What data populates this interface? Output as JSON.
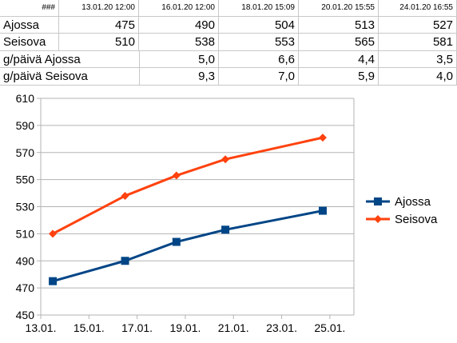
{
  "sheet": {
    "header": [
      "###",
      "13.01.20 12:00",
      "16.01.20 12:00",
      "18.01.20 15:09",
      "20.01.20 15:55",
      "24.01.20 16:55"
    ],
    "rows": [
      {
        "label": "Ajossa",
        "values": [
          "475",
          "490",
          "504",
          "513",
          "527"
        ]
      },
      {
        "label": "Seisova",
        "values": [
          "510",
          "538",
          "553",
          "565",
          "581"
        ]
      },
      {
        "label": "g/päivä Ajossa",
        "values": [
          "",
          "5,0",
          "6,6",
          "4,4",
          "3,5"
        ]
      },
      {
        "label": "g/päivä Seisova",
        "values": [
          "",
          "9,3",
          "7,0",
          "5,9",
          "4,0"
        ]
      }
    ]
  },
  "chart_data": {
    "type": "line",
    "title": "",
    "xlabel": "",
    "ylabel": "",
    "x": [
      "2020-01-13 12:00",
      "2020-01-16 12:00",
      "2020-01-18 15:09",
      "2020-01-20 15:55",
      "2020-01-24 16:55"
    ],
    "series": [
      {
        "name": "Ajossa",
        "values": [
          475,
          490,
          504,
          513,
          527
        ],
        "color": "#004586",
        "marker": "square"
      },
      {
        "name": "Seisova",
        "values": [
          510,
          538,
          553,
          565,
          581
        ],
        "color": "#ff420e",
        "marker": "diamond"
      }
    ],
    "ylim": [
      450,
      610
    ],
    "yticks": [
      "450",
      "470",
      "490",
      "510",
      "530",
      "550",
      "570",
      "590",
      "610"
    ],
    "xlim": [
      "2020-01-13",
      "2020-01-26"
    ],
    "xticks": [
      "13.01.",
      "15.01.",
      "17.01.",
      "19.01.",
      "21.01.",
      "23.01.",
      "25.01."
    ],
    "grid": "horizontal",
    "legend": "right"
  }
}
